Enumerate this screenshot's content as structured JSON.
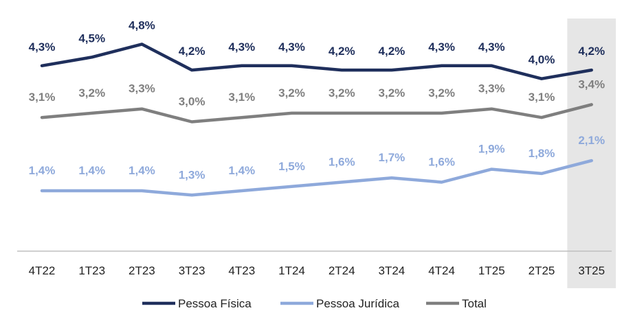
{
  "chart_data": {
    "type": "line",
    "categories": [
      "4T22",
      "1T23",
      "2T23",
      "3T23",
      "4T23",
      "1T24",
      "2T24",
      "3T24",
      "4T24",
      "1T25",
      "2T25",
      "3T25"
    ],
    "series": [
      {
        "name": "Pessoa Física",
        "color": "#1f2f5c",
        "values": [
          4.3,
          4.5,
          4.8,
          4.2,
          4.3,
          4.3,
          4.2,
          4.2,
          4.3,
          4.3,
          4.0,
          4.2
        ],
        "labels": [
          "4,3%",
          "4,5%",
          "4,8%",
          "4,2%",
          "4,3%",
          "4,3%",
          "4,2%",
          "4,2%",
          "4,3%",
          "4,3%",
          "4,0%",
          "4,2%"
        ]
      },
      {
        "name": "Pessoa Jurídica",
        "color": "#8ea9db",
        "values": [
          1.4,
          1.4,
          1.4,
          1.3,
          1.4,
          1.5,
          1.6,
          1.7,
          1.6,
          1.9,
          1.8,
          2.1
        ],
        "labels": [
          "1,4%",
          "1,4%",
          "1,4%",
          "1,3%",
          "1,4%",
          "1,5%",
          "1,6%",
          "1,7%",
          "1,6%",
          "1,9%",
          "1,8%",
          "2,1%"
        ]
      },
      {
        "name": "Total",
        "color": "#7f7f7f",
        "values": [
          3.1,
          3.2,
          3.3,
          3.0,
          3.1,
          3.2,
          3.2,
          3.2,
          3.2,
          3.3,
          3.1,
          3.4
        ],
        "labels": [
          "3,1%",
          "3,2%",
          "3,3%",
          "3,0%",
          "3,1%",
          "3,2%",
          "3,2%",
          "3,2%",
          "3,2%",
          "3,3%",
          "3,1%",
          "3,4%"
        ]
      }
    ],
    "highlight_category": "3T25",
    "highlight_color": "#e6e6e6",
    "ylim": [
      0,
      5.3
    ],
    "grid": false,
    "legend_position": "bottom-center",
    "axis_color": "#bfbfbf"
  }
}
